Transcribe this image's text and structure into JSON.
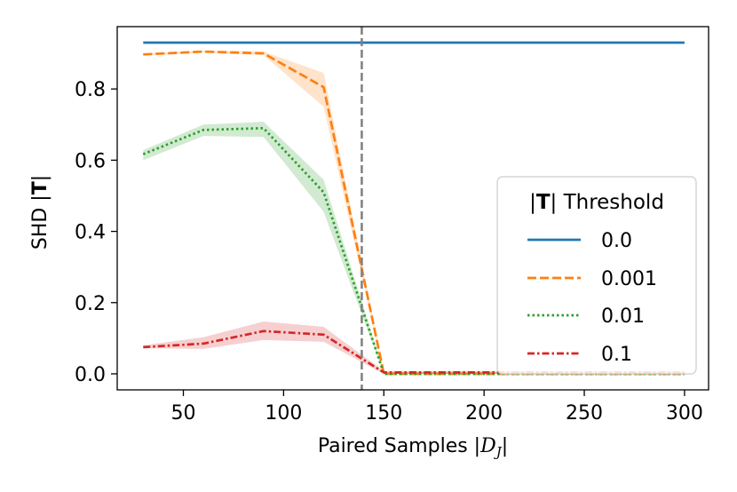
{
  "chart_data": {
    "type": "line",
    "title": "",
    "xlabel": "Paired Samples |D_J|",
    "xlabel_parts": {
      "main": "Paired Samples |",
      "script_D": "D",
      "script_J": "J",
      "close": "|"
    },
    "ylabel": "SHD |T|",
    "ylabel_parts": {
      "main": "SHD |",
      "bold": "T",
      "close": "|"
    },
    "xlim": [
      17,
      312
    ],
    "ylim": [
      -0.045,
      0.975
    ],
    "xticks": [
      50,
      100,
      150,
      200,
      250,
      300
    ],
    "xtick_labels": [
      "50",
      "100",
      "150",
      "200",
      "250",
      "300"
    ],
    "yticks": [
      0.0,
      0.2,
      0.4,
      0.6,
      0.8
    ],
    "ytick_labels": [
      "0.0",
      "0.2",
      "0.4",
      "0.6",
      "0.8"
    ],
    "vline": {
      "x": 139,
      "color": "#7f7f7f",
      "style": "dashed"
    },
    "grid": false,
    "x": [
      30,
      60,
      90,
      120,
      150,
      180,
      210,
      240,
      270,
      300
    ],
    "series": [
      {
        "name": "0.0",
        "color": "#1f77b4",
        "dash": "solid",
        "values": [
          0.93,
          0.93,
          0.93,
          0.93,
          0.93,
          0.93,
          0.93,
          0.93,
          0.93,
          0.93
        ],
        "lower": [
          0.93,
          0.93,
          0.93,
          0.93,
          0.93,
          0.93,
          0.93,
          0.93,
          0.93,
          0.93
        ],
        "upper": [
          0.93,
          0.93,
          0.93,
          0.93,
          0.93,
          0.93,
          0.93,
          0.93,
          0.93,
          0.93
        ]
      },
      {
        "name": "0.001",
        "color": "#ff7f0e",
        "dash": "dashed",
        "values": [
          0.897,
          0.905,
          0.9,
          0.805,
          0.0,
          0.0,
          0.0,
          0.0,
          0.0,
          0.0
        ],
        "lower": [
          0.894,
          0.902,
          0.895,
          0.75,
          0.0,
          0.0,
          0.0,
          0.0,
          0.0,
          0.0
        ],
        "upper": [
          0.9,
          0.908,
          0.905,
          0.845,
          0.005,
          0.005,
          0.005,
          0.005,
          0.005,
          0.005
        ]
      },
      {
        "name": "0.01",
        "color": "#2ca02c",
        "dash": "dotted",
        "values": [
          0.617,
          0.685,
          0.69,
          0.51,
          0.0,
          0.0,
          0.0,
          0.0,
          0.0,
          0.0
        ],
        "lower": [
          0.6,
          0.668,
          0.665,
          0.455,
          0.0,
          0.0,
          0.0,
          0.0,
          0.0,
          0.0
        ],
        "upper": [
          0.628,
          0.7,
          0.708,
          0.545,
          0.005,
          0.005,
          0.005,
          0.005,
          0.005,
          0.005
        ]
      },
      {
        "name": "0.1",
        "color": "#d62728",
        "dash": "dashdot",
        "values": [
          0.075,
          0.085,
          0.12,
          0.11,
          0.004,
          0.004,
          0.004,
          0.004,
          0.004,
          0.004
        ],
        "lower": [
          0.072,
          0.07,
          0.095,
          0.09,
          0.0,
          0.0,
          0.0,
          0.0,
          0.0,
          0.0
        ],
        "upper": [
          0.08,
          0.103,
          0.147,
          0.132,
          0.008,
          0.008,
          0.008,
          0.008,
          0.008,
          0.008
        ]
      }
    ],
    "legend": {
      "title": "|T| Threshold",
      "title_parts": {
        "open": "|",
        "bold": "T",
        "rest": "| Threshold"
      },
      "placement": "center-right",
      "labels": [
        "0.0",
        "0.001",
        "0.01",
        "0.1"
      ]
    }
  }
}
